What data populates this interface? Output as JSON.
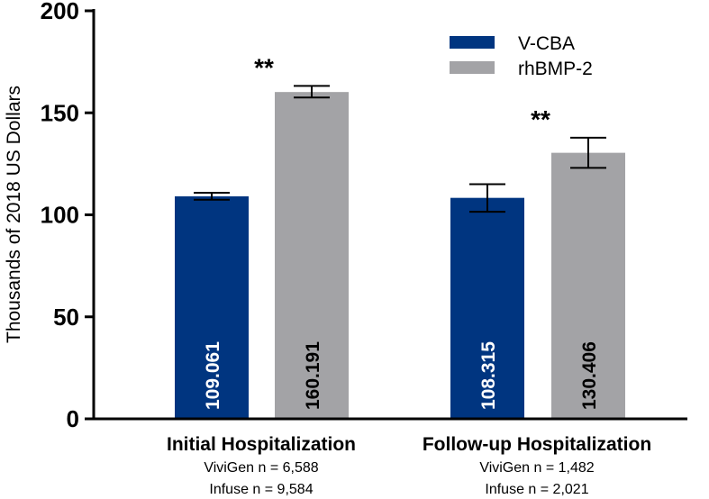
{
  "chart_data": {
    "type": "bar",
    "title": "",
    "xlabel": "",
    "ylabel": "Thousands of 2018 US Dollars",
    "ylim": [
      0,
      200
    ],
    "yticks": [
      0,
      50,
      100,
      150,
      200
    ],
    "groups": [
      {
        "label": "Initial Hospitalization",
        "sublabels": [
          "ViviGen n = 6,588",
          "Infuse n = 9,584"
        ],
        "significance": "**"
      },
      {
        "label": "Follow-up Hospitalization",
        "sublabels": [
          "ViviGen n = 1,482",
          "Infuse n = 2,021"
        ],
        "significance": "**"
      }
    ],
    "series": [
      {
        "name": "V-CBA",
        "color": "#003580",
        "label_color": "#ffffff",
        "values": [
          109.061,
          108.315
        ],
        "value_labels": [
          "109.061",
          "108.315"
        ],
        "error": [
          [
            107.4,
            110.8
          ],
          [
            101.5,
            115.0
          ]
        ]
      },
      {
        "name": "rhBMP-2",
        "color": "#a3a3a6",
        "label_color": "#000000",
        "values": [
          160.191,
          130.406
        ],
        "value_labels": [
          "160.191",
          "130.406"
        ],
        "error": [
          [
            157.5,
            163.2
          ],
          [
            123.0,
            137.8
          ]
        ]
      }
    ],
    "legend": "top-right"
  }
}
